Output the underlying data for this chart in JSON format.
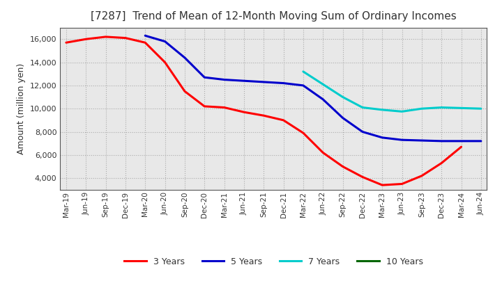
{
  "title": "[7287]  Trend of Mean of 12-Month Moving Sum of Ordinary Incomes",
  "ylabel": "Amount (million yen)",
  "background_color": "#ffffff",
  "plot_bg_color": "#e8e8e8",
  "grid_color": "#aaaaaa",
  "x_labels": [
    "Mar-19",
    "Jun-19",
    "Sep-19",
    "Dec-19",
    "Mar-20",
    "Jun-20",
    "Sep-20",
    "Dec-20",
    "Mar-21",
    "Jun-21",
    "Sep-21",
    "Dec-21",
    "Mar-22",
    "Jun-22",
    "Sep-22",
    "Dec-22",
    "Mar-23",
    "Jun-23",
    "Sep-23",
    "Dec-23",
    "Mar-24",
    "Jun-24"
  ],
  "ylim": [
    3000,
    17000
  ],
  "yticks": [
    4000,
    6000,
    8000,
    10000,
    12000,
    14000,
    16000
  ],
  "series": {
    "3 Years": {
      "color": "#ff0000",
      "data": [
        15700,
        16000,
        16200,
        16100,
        15700,
        14000,
        11500,
        10200,
        10100,
        9700,
        9400,
        9000,
        7900,
        6200,
        5000,
        4100,
        3400,
        3500,
        4200,
        5300,
        6700,
        null
      ]
    },
    "5 Years": {
      "color": "#0000cc",
      "data": [
        null,
        null,
        null,
        null,
        16300,
        15800,
        14400,
        12700,
        12500,
        12400,
        12300,
        12200,
        12000,
        10800,
        9200,
        8000,
        7500,
        7300,
        7250,
        7200,
        7200,
        7200
      ]
    },
    "7 Years": {
      "color": "#00cccc",
      "data": [
        null,
        null,
        null,
        null,
        null,
        null,
        null,
        null,
        null,
        null,
        null,
        null,
        13200,
        12100,
        11000,
        10100,
        9900,
        9750,
        10000,
        10100,
        10050,
        10000
      ]
    },
    "10 Years": {
      "color": "#006600",
      "data": [
        null,
        null,
        null,
        null,
        null,
        null,
        null,
        null,
        null,
        null,
        null,
        null,
        null,
        null,
        null,
        null,
        null,
        null,
        null,
        null,
        null,
        null
      ]
    }
  }
}
